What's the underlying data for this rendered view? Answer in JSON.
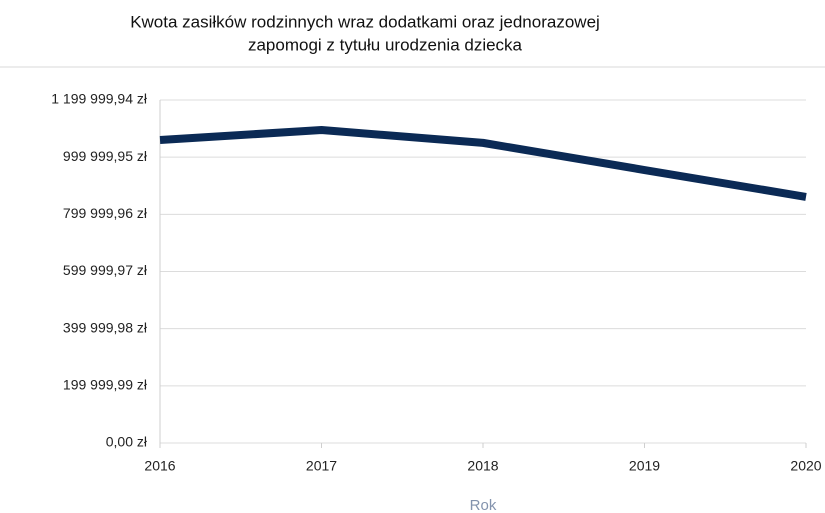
{
  "chart_data": {
    "type": "line",
    "title": [
      "Kwota zasiłków rodzinnych wraz dodatkami oraz jednorazowej",
      "zapomogi z tytułu urodzenia dziecka"
    ],
    "x_label": "Rok",
    "x": [
      2016,
      2017,
      2018,
      2019,
      2020
    ],
    "xlim": [
      2016,
      2020
    ],
    "xticks": [
      2016,
      2017,
      2018,
      2019,
      2020
    ],
    "series": [
      {
        "color": "#0b2a55",
        "values": [
          1060000,
          1095000,
          1050000,
          955000,
          861000
        ]
      }
    ],
    "ylim": [
      0,
      1199999.94
    ],
    "yticks": [
      {
        "value": 0,
        "label": "0,00 zł"
      },
      {
        "value": 199999.99,
        "label": "199 999,99 zł"
      },
      {
        "value": 399999.98,
        "label": "399 999,98 zł"
      },
      {
        "value": 599999.97,
        "label": "599 999,97 zł"
      },
      {
        "value": 799999.96,
        "label": "799 999,96 zł"
      },
      {
        "value": 999999.95,
        "label": "999 999,95 zł"
      },
      {
        "value": 1199999.94,
        "label": "1 199 999,94 zł"
      }
    ],
    "grid": true
  }
}
